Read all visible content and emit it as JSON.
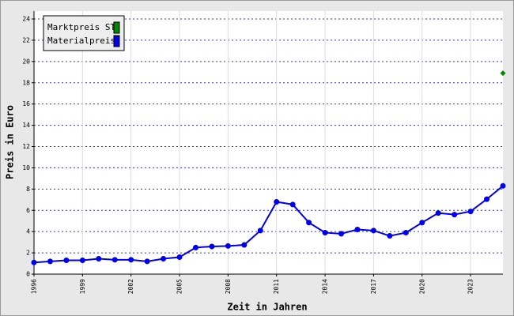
{
  "chart_data": {
    "type": "line",
    "x_label": "Zeit in Jahren",
    "y_label": "Preis in Euro",
    "x": [
      1996,
      1997,
      1998,
      1999,
      2000,
      2001,
      2002,
      2003,
      2004,
      2005,
      2006,
      2007,
      2008,
      2009,
      2010,
      2011,
      2012,
      2013,
      2014,
      2015,
      2016,
      2017,
      2018,
      2019,
      2020,
      2021,
      2022,
      2023,
      2024,
      2025
    ],
    "series": [
      {
        "name": "Marktpreis ST",
        "color": "#008800",
        "marker": "diamond",
        "values": [
          null,
          null,
          null,
          null,
          null,
          null,
          null,
          null,
          null,
          null,
          null,
          null,
          null,
          null,
          null,
          null,
          null,
          null,
          null,
          null,
          null,
          null,
          null,
          null,
          null,
          null,
          null,
          null,
          null,
          18.9
        ]
      },
      {
        "name": "Materialpreis",
        "color": "#0000ee",
        "marker": "circle",
        "values": [
          1.1,
          1.2,
          1.3,
          1.3,
          1.45,
          1.35,
          1.35,
          1.2,
          1.45,
          1.6,
          2.5,
          2.6,
          2.65,
          2.75,
          4.1,
          6.8,
          6.55,
          4.85,
          3.9,
          3.8,
          4.2,
          4.1,
          3.6,
          3.9,
          4.85,
          5.75,
          5.6,
          5.9,
          7.05,
          8.3
        ]
      }
    ],
    "xlim": [
      1996,
      2025
    ],
    "xticks": [
      1996,
      1999,
      2002,
      2005,
      2008,
      2011,
      2014,
      2017,
      2020,
      2023
    ],
    "ylim": [
      0,
      24
    ],
    "yticks": [
      0,
      2,
      4,
      6,
      8,
      10,
      12,
      14,
      16,
      18,
      20,
      22,
      24
    ],
    "grid": true,
    "legend": "top-left"
  }
}
